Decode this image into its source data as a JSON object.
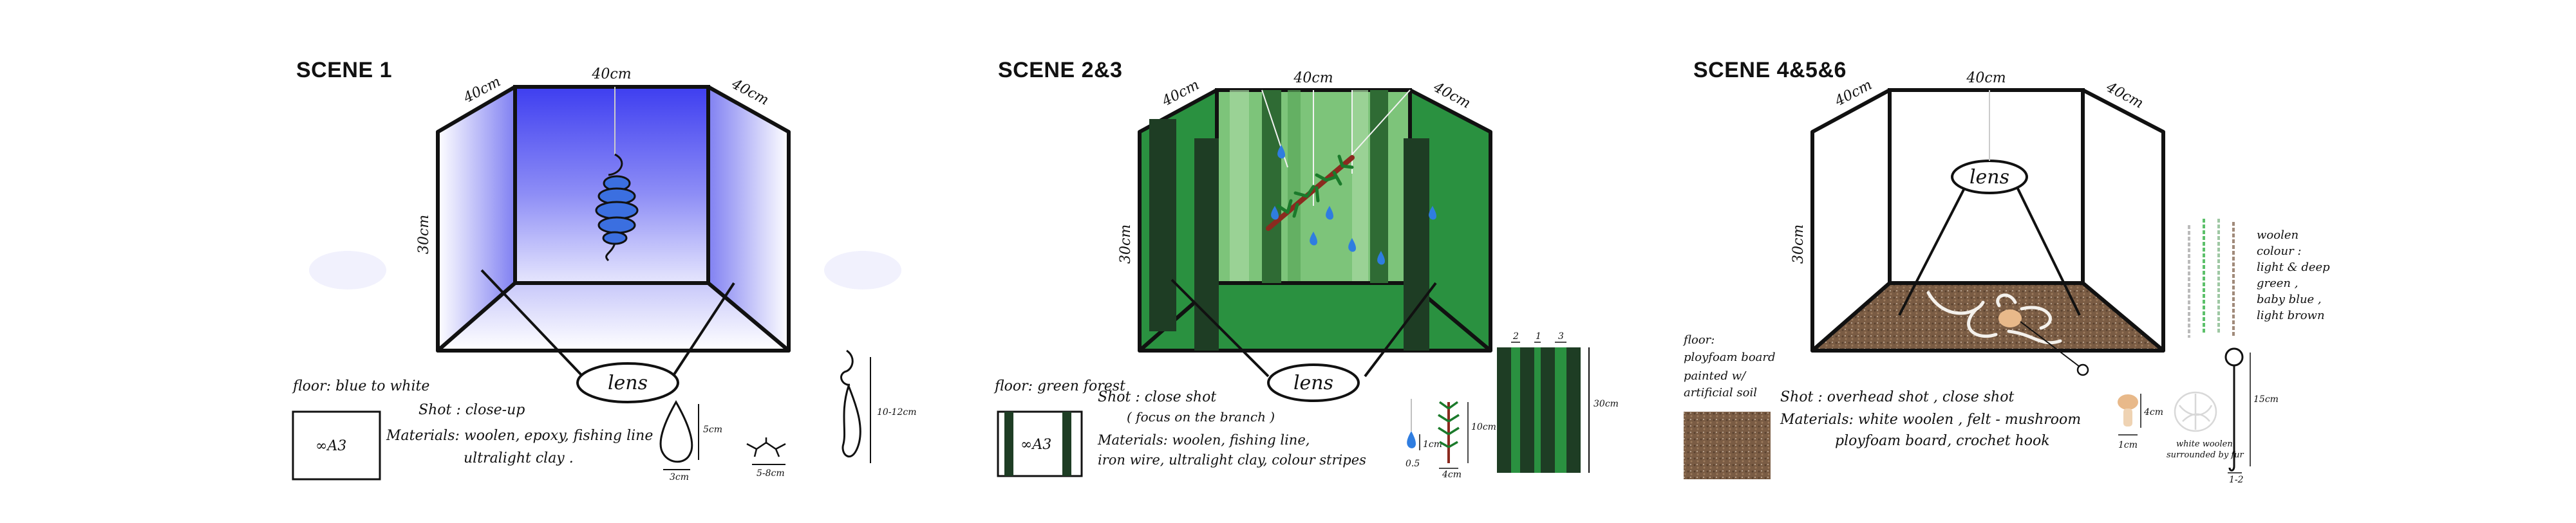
{
  "scene1": {
    "title": "SCENE 1",
    "dim_top": "40cm",
    "dim_left": "40cm",
    "dim_right": "40cm",
    "dim_height": "30cm",
    "lens": "lens",
    "floor": "floor: blue to white",
    "shot": "Shot : close-up",
    "materials_line1": "Materials: woolen, epoxy, fishing line",
    "materials_line2": "ultralight clay .",
    "a3_label": "∞A3",
    "drop_size": "5cm",
    "drop_width": "3cm",
    "creature_size": "5-8cm",
    "worm_size": "10-12cm"
  },
  "scene23": {
    "title": "SCENE 2&3",
    "dim_top": "40cm",
    "dim_left": "40cm",
    "dim_right": "40cm",
    "dim_height": "30cm",
    "lens": "lens",
    "floor": "floor: green forest",
    "a3_label": "∞A3",
    "shot": "Shot : close shot",
    "shot_note": "( focus on the branch )",
    "materials_line1": "Materials: woolen, fishing line,",
    "materials_line2": "iron wire, ultralight clay, colour stripes",
    "drop_size": "1cm",
    "drop_width": "0.5",
    "branch_size": "10cm",
    "branch_width": "4cm",
    "stripe_widths": [
      "2",
      "1",
      "3"
    ],
    "stripe_height": "30cm"
  },
  "scene456": {
    "title": "SCENE 4&5&6",
    "dim_top": "40cm",
    "dim_left": "40cm",
    "dim_right": "40cm",
    "dim_height": "30cm",
    "lens": "lens",
    "floor_line1": "floor:",
    "floor_line2": "ployfoam board",
    "floor_line3": "painted w/ artificial soil",
    "shot": "Shot : overhead shot , close shot",
    "materials_line1": "Materials: white woolen , felt - mushroom",
    "materials_line2": "ployfoam board, crochet hook",
    "mushroom_size": "4cm",
    "mushroom_width": "1cm",
    "wool_label_line1": "white woolen",
    "wool_label_line2": "surrounded by fur",
    "hook_size": "15cm",
    "hook_width": "1-2",
    "colour_line1": "woolen",
    "colour_line2": "colour :",
    "colour_line3": "light & deep",
    "colour_line4": "green ,",
    "colour_line5": "baby blue ,",
    "colour_line6": "light brown"
  },
  "colors": {
    "scene1_back": "#4747f0",
    "scene1_side": "#9a9af6",
    "forest_dark": "#1e3d24",
    "forest_mid": "#2a9140",
    "forest_light": "#7dc47a",
    "soil": "#7a5c44",
    "drop_blue": "#2f7de0"
  }
}
